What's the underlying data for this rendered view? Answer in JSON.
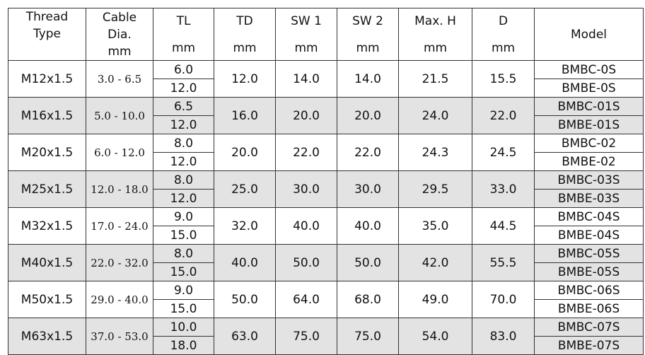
{
  "headers": {
    "thread": [
      "Thread",
      "Type"
    ],
    "cable": [
      "Cable",
      "Dia.",
      "mm"
    ],
    "tl": [
      "TL",
      "mm"
    ],
    "td": [
      "TD",
      "mm"
    ],
    "sw1": [
      "SW 1",
      "mm"
    ],
    "sw2": [
      "SW 2",
      "mm"
    ],
    "maxh": [
      "Max. H",
      "mm"
    ],
    "d": [
      "D",
      "mm"
    ],
    "model": "Model"
  },
  "rows": [
    {
      "thread": "M12x1.5",
      "cable": "3.0 - 6.5",
      "tl": [
        "6.0",
        "12.0"
      ],
      "td": "12.0",
      "sw1": "14.0",
      "sw2": "14.0",
      "maxh": "21.5",
      "d": "15.5",
      "models": [
        "BMBC-0S",
        "BMBE-0S"
      ]
    },
    {
      "thread": "M16x1.5",
      "cable": "5.0 - 10.0",
      "tl": [
        "6.5",
        "12.0"
      ],
      "td": "16.0",
      "sw1": "20.0",
      "sw2": "20.0",
      "maxh": "24.0",
      "d": "22.0",
      "models": [
        "BMBC-01S",
        "BMBE-01S"
      ]
    },
    {
      "thread": "M20x1.5",
      "cable": "6.0 - 12.0",
      "tl": [
        "8.0",
        "12.0"
      ],
      "td": "20.0",
      "sw1": "22.0",
      "sw2": "22.0",
      "maxh": "24.3",
      "d": "24.5",
      "models": [
        "BMBC-02",
        "BMBE-02"
      ]
    },
    {
      "thread": "M25x1.5",
      "cable": "12.0 - 18.0",
      "tl": [
        "8.0",
        "12.0"
      ],
      "td": "25.0",
      "sw1": "30.0",
      "sw2": "30.0",
      "maxh": "29.5",
      "d": "33.0",
      "models": [
        "BMBC-03S",
        "BMBE-03S"
      ]
    },
    {
      "thread": "M32x1.5",
      "cable": "17.0 - 24.0",
      "tl": [
        "9.0",
        "15.0"
      ],
      "td": "32.0",
      "sw1": "40.0",
      "sw2": "40.0",
      "maxh": "35.0",
      "d": "44.5",
      "models": [
        "BMBC-04S",
        "BMBE-04S"
      ]
    },
    {
      "thread": "M40x1.5",
      "cable": "22.0 - 32.0",
      "tl": [
        "8.0",
        "15.0"
      ],
      "td": "40.0",
      "sw1": "50.0",
      "sw2": "50.0",
      "maxh": "42.0",
      "d": "55.5",
      "models": [
        "BMBC-05S",
        "BMBE-05S"
      ]
    },
    {
      "thread": "M50x1.5",
      "cable": "29.0 - 40.0",
      "tl": [
        "9.0",
        "15.0"
      ],
      "td": "50.0",
      "sw1": "64.0",
      "sw2": "68.0",
      "maxh": "49.0",
      "d": "70.0",
      "models": [
        "BMBC-06S",
        "BMBE-06S"
      ]
    },
    {
      "thread": "M63x1.5",
      "cable": "37.0 - 53.0",
      "tl": [
        "10.0",
        "18.0"
      ],
      "td": "63.0",
      "sw1": "75.0",
      "sw2": "75.0",
      "maxh": "54.0",
      "d": "83.0",
      "models": [
        "BMBC-07S",
        "BMBE-07S"
      ]
    }
  ],
  "colors": {
    "shade": "#e3e3e3",
    "border": "#333333"
  }
}
